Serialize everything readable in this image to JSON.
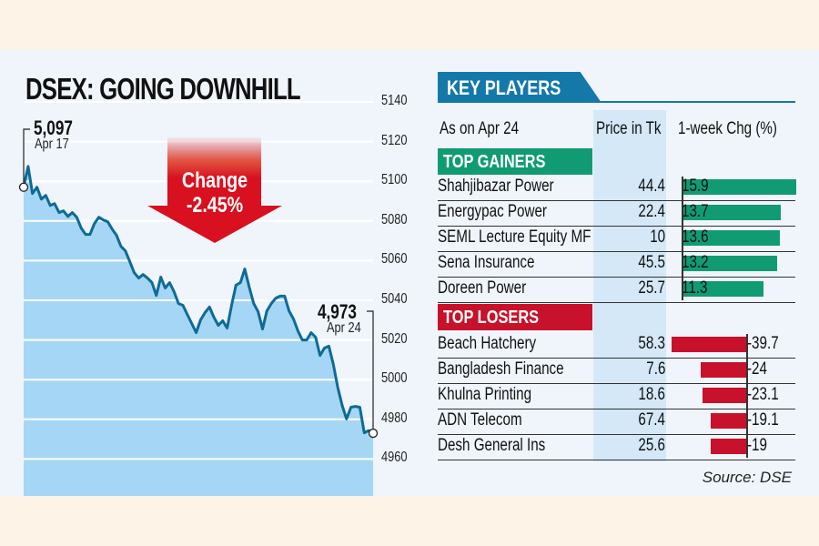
{
  "colors": {
    "area_fill": "#a6d6f5",
    "line": "#0f6a96",
    "arrow": "#d8101f",
    "header_blue": "#1478a8",
    "gainer_green": "#119b72",
    "loser_red": "#c8112a",
    "price_col_bg": "#d4e8f7"
  },
  "chart_data": [
    {
      "type": "area",
      "title": "DSEX: GOING DOWNHILL",
      "xlabel": "",
      "ylabel": "",
      "ylim": [
        4950,
        5150
      ],
      "yticks": [
        "5140",
        "5120",
        "5100",
        "5080",
        "5060",
        "5040",
        "5020",
        "5000",
        "4980",
        "4960"
      ],
      "grid": true,
      "x_range": [
        "Apr 17",
        "Apr 24"
      ],
      "series": [
        {
          "name": "DSEX",
          "values": [
            5097,
            5107.5,
            5093.8,
            5097,
            5091,
            5092.9,
            5087.8,
            5088.7,
            5084.2,
            5085.1,
            5082.3,
            5084.2,
            5081.9,
            5076.4,
            5073.2,
            5073.2,
            5078.7,
            5081.9,
            5080.5,
            5079.6,
            5075.9,
            5072.7,
            5067.2,
            5064.9,
            5059.4,
            5053.9,
            5051.2,
            5053,
            5051.2,
            5048.9,
            5042.5,
            5051.7,
            5046.2,
            5048.9,
            5044.3,
            5038.4,
            5037.5,
            5032.9,
            5028.3,
            5023.7,
            5030.1,
            5033.8,
            5036.6,
            5031.5,
            5027.4,
            5029.7,
            5026,
            5037.5,
            5047.6,
            5048.9,
            5055.8,
            5046.6,
            5038.4,
            5034.3,
            5025.5,
            5034.7,
            5038.4,
            5041.1,
            5042.1,
            5042.1,
            5034.7,
            5030.6,
            5024.6,
            5020,
            5020,
            5023.7,
            5021.4,
            5012.2,
            5015.9,
            5016.9,
            5007.7,
            4996.2,
            4987,
            4980.2,
            4986.1,
            4986.5,
            4986.1,
            4973.2,
            4974.3,
            4973
          ]
        }
      ],
      "annotations": [
        {
          "label": "5,097",
          "sublabel": "Apr 17",
          "position": "start"
        },
        {
          "label": "4,973",
          "sublabel": "Apr 24",
          "position": "end"
        },
        {
          "label": "Change",
          "value": "-2.45%",
          "style": "down-arrow"
        }
      ]
    },
    {
      "type": "bar",
      "title": "KEY PLAYERS",
      "xlabel": "1-week Chg (%)",
      "categories": [
        "Shahjibazar Power",
        "Energypac Power",
        "SEML Lecture Equity MF",
        "Sena Insurance",
        "Doreen Power",
        "Beach Hatchery",
        "Bangladesh Finance",
        "Khulna Printing",
        "ADN Telecom",
        "Desh General Ins"
      ],
      "series": [
        {
          "name": "1-week Chg (%)",
          "values": [
            15.9,
            13.7,
            13.6,
            13.2,
            11.3,
            -39.7,
            -24,
            -23.1,
            -19.1,
            -19
          ]
        },
        {
          "name": "Price in Tk",
          "values": [
            44.4,
            22.4,
            10,
            45.5,
            25.7,
            58.3,
            7.6,
            18.6,
            67.4,
            25.6
          ]
        }
      ]
    }
  ],
  "chart": {
    "title": "DSEX: GOING DOWNHILL",
    "start_value": "5,097",
    "start_date": "Apr 17",
    "end_value": "4,973",
    "end_date": "Apr 24",
    "change_label": "Change",
    "change_value": "-2.45%",
    "yticks": [
      "5140",
      "5120",
      "5100",
      "5080",
      "5060",
      "5040",
      "5020",
      "5000",
      "4980",
      "4960"
    ]
  },
  "table": {
    "header": "KEY PLAYERS",
    "as_on": "As on Apr 24",
    "price_header": "Price in Tk",
    "chg_header": "1-week Chg (%)",
    "gainers_label": "TOP GAINERS",
    "losers_label": "TOP LOSERS",
    "gainers": [
      {
        "name": "Shahjibazar Power",
        "price": "44.4",
        "chg": "15.9",
        "chg_value": 15.9
      },
      {
        "name": "Energypac Power",
        "price": "22.4",
        "chg": "13.7",
        "chg_value": 13.7
      },
      {
        "name": "SEML Lecture Equity MF",
        "price": "10",
        "chg": "13.6",
        "chg_value": 13.6
      },
      {
        "name": "Sena Insurance",
        "price": "45.5",
        "chg": "13.2",
        "chg_value": 13.2
      },
      {
        "name": "Doreen Power",
        "price": "25.7",
        "chg": "11.3",
        "chg_value": 11.3
      }
    ],
    "losers": [
      {
        "name": "Beach Hatchery",
        "price": "58.3",
        "chg": "-39.7",
        "chg_value": -39.7
      },
      {
        "name": "Bangladesh Finance",
        "price": "7.6",
        "chg": "-24",
        "chg_value": -24
      },
      {
        "name": "Khulna Printing",
        "price": "18.6",
        "chg": "-23.1",
        "chg_value": -23.1
      },
      {
        "name": "ADN Telecom",
        "price": "67.4",
        "chg": "-19.1",
        "chg_value": -19.1
      },
      {
        "name": "Desh General Ins",
        "price": "25.6",
        "chg": "-19",
        "chg_value": -19
      }
    ],
    "source": "Source: DSE"
  }
}
